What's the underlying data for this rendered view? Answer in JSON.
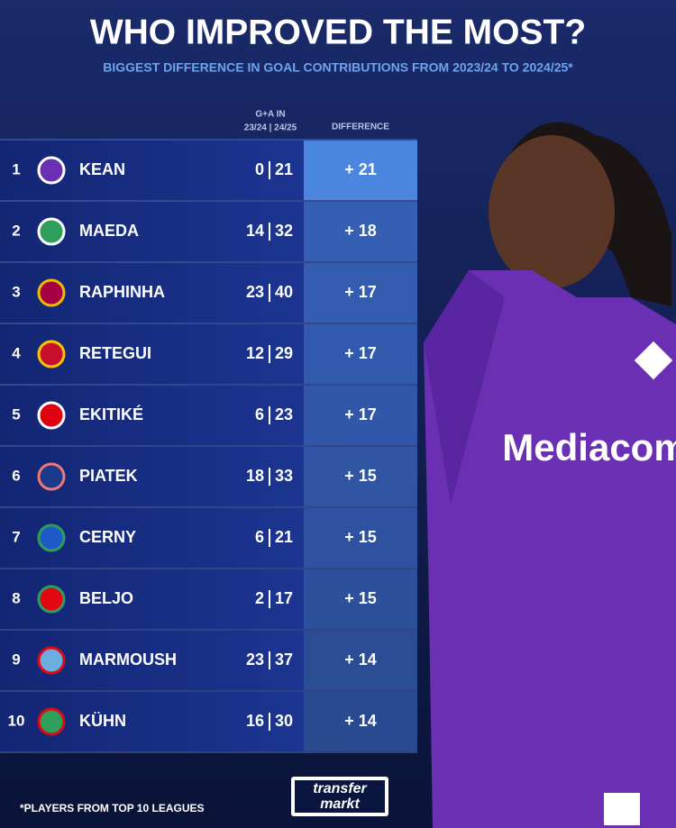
{
  "header": {
    "title": "WHO IMPROVED THE MOST?",
    "subtitle": "BIGGEST DIFFERENCE IN GOAL CONTRIBUTIONS FROM 2023/24 TO 2024/25*"
  },
  "table": {
    "columns": {
      "ga_line1": "G+A IN",
      "ga_line2": "23/24 | 24/25",
      "difference": "DIFFERENCE"
    },
    "rows": [
      {
        "rank": 1,
        "name": "KEAN",
        "ga_2324": 0,
        "ga_2425": 21,
        "difference": "+ 21"
      },
      {
        "rank": 2,
        "name": "MAEDA",
        "ga_2324": 14,
        "ga_2425": 32,
        "difference": "+ 18"
      },
      {
        "rank": 3,
        "name": "RAPHINHA",
        "ga_2324": 23,
        "ga_2425": 40,
        "difference": "+ 17"
      },
      {
        "rank": 4,
        "name": "RETEGUI",
        "ga_2324": 12,
        "ga_2425": 29,
        "difference": "+ 17"
      },
      {
        "rank": 5,
        "name": "EKITIKÉ",
        "ga_2324": 6,
        "ga_2425": 23,
        "difference": "+ 17"
      },
      {
        "rank": 6,
        "name": "PIATEK",
        "ga_2324": 18,
        "ga_2425": 33,
        "difference": "+ 15"
      },
      {
        "rank": 7,
        "name": "CERNY",
        "ga_2324": 6,
        "ga_2425": 21,
        "difference": "+ 15"
      },
      {
        "rank": 8,
        "name": "BELJO",
        "ga_2324": 2,
        "ga_2425": 17,
        "difference": "+ 15"
      },
      {
        "rank": 9,
        "name": "MARMOUSH",
        "ga_2324": 23,
        "ga_2425": 37,
        "difference": "+ 14"
      },
      {
        "rank": 10,
        "name": "KÜHN",
        "ga_2324": 16,
        "ga_2425": 30,
        "difference": "+ 14"
      }
    ]
  },
  "photo": {
    "shirt_text": "Mediacom"
  },
  "footer": {
    "note": "*PLAYERS FROM TOP 10 LEAGUES",
    "logo_line1": "transfer",
    "logo_line2": "markt"
  }
}
